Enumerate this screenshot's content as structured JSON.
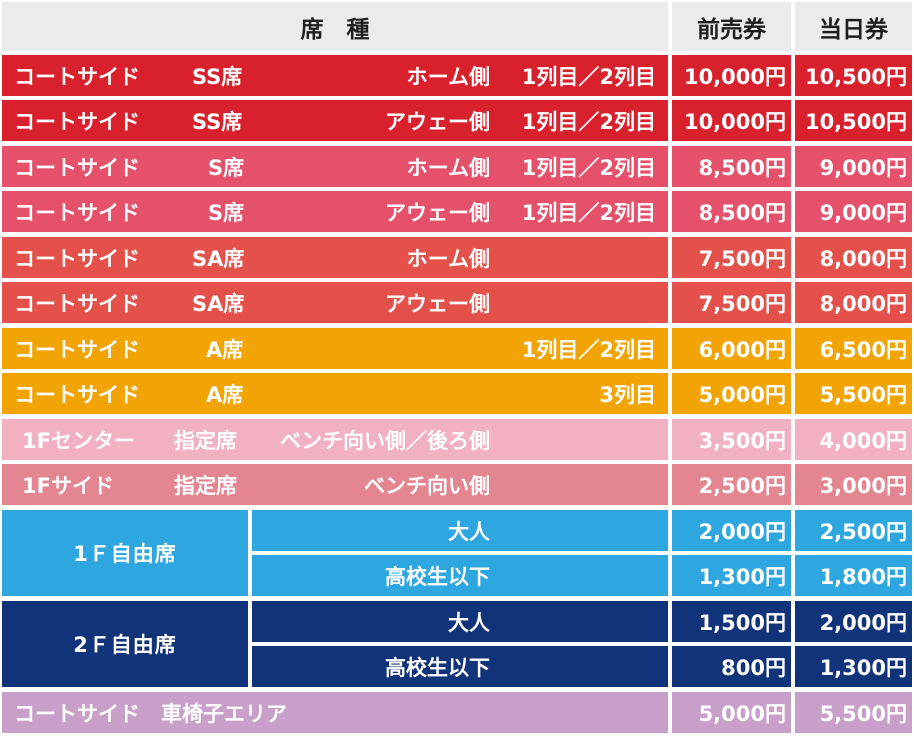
{
  "header": {
    "seat_type": "席　種",
    "advance": "前売券",
    "same_day": "当日券"
  },
  "colors": {
    "header_bg": "#ebebeb",
    "ss": "#d9212d",
    "s": "#e5506a",
    "sa": "#e3514a",
    "a": "#f2a405",
    "center": "#f2b1c0",
    "side": "#e38691",
    "f1": "#2ea7e0",
    "f2": "#11337a",
    "wheel": "#c79fc9"
  },
  "rows": [
    {
      "area": "コートサイド",
      "cls": "SS席",
      "side": "ホーム側",
      "rowsinfo": "1列目／2列目",
      "advance": "10,000円",
      "same_day": "10,500円"
    },
    {
      "area": "コートサイド",
      "cls": "SS席",
      "side": "アウェー側",
      "rowsinfo": "1列目／2列目",
      "advance": "10,000円",
      "same_day": "10,500円"
    },
    {
      "area": "コートサイド",
      "cls": "S席",
      "side": "ホーム側",
      "rowsinfo": "1列目／2列目",
      "advance": "8,500円",
      "same_day": "9,000円"
    },
    {
      "area": "コートサイド",
      "cls": "S席",
      "side": "アウェー側",
      "rowsinfo": "1列目／2列目",
      "advance": "8,500円",
      "same_day": "9,000円"
    },
    {
      "area": "コートサイド",
      "cls": "SA席",
      "side": "ホーム側",
      "rowsinfo": "",
      "advance": "7,500円",
      "same_day": "8,000円"
    },
    {
      "area": "コートサイド",
      "cls": "SA席",
      "side": "アウェー側",
      "rowsinfo": "",
      "advance": "7,500円",
      "same_day": "8,000円"
    },
    {
      "area": "コートサイド",
      "cls": "A席",
      "side": "",
      "rowsinfo": "1列目／2列目",
      "advance": "6,000円",
      "same_day": "6,500円"
    },
    {
      "area": "コートサイド",
      "cls": "A席",
      "side": "",
      "rowsinfo": "3列目",
      "advance": "5,000円",
      "same_day": "5,500円"
    },
    {
      "area": "1Fセンター",
      "cls": "指定席",
      "side": "ベンチ向い側／後ろ側",
      "rowsinfo": "",
      "advance": "3,500円",
      "same_day": "4,000円"
    },
    {
      "area": "1Fサイド",
      "cls": "指定席",
      "side": "ベンチ向い側",
      "rowsinfo": "",
      "advance": "2,500円",
      "same_day": "3,000円"
    }
  ],
  "groups": [
    {
      "label": "1Ｆ自由席",
      "items": [
        {
          "sub": "大人",
          "advance": "2,000円",
          "same_day": "2,500円"
        },
        {
          "sub": "高校生以下",
          "advance": "1,300円",
          "same_day": "1,800円"
        }
      ]
    },
    {
      "label": "2Ｆ自由席",
      "items": [
        {
          "sub": "大人",
          "advance": "1,500円",
          "same_day": "2,000円"
        },
        {
          "sub": "高校生以下",
          "advance": "800円",
          "same_day": "1,300円"
        }
      ]
    }
  ],
  "wheelchair": {
    "label": "コートサイド　車椅子エリア",
    "advance": "5,000円",
    "same_day": "5,500円"
  }
}
